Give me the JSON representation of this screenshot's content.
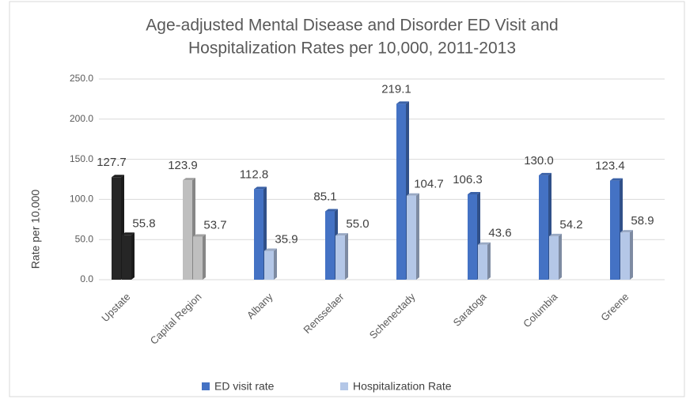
{
  "chart_data": {
    "type": "bar3d",
    "title": [
      "Age-adjusted Mental Disease and Disorder ED Visit and",
      "Hospitalization Rates per 10,000, 2011-2013"
    ],
    "y_label": "Rate per 10,000",
    "categories": [
      "Upstate",
      "Capital Region",
      "Albany",
      "Rensselaer",
      "Schenectady",
      "Saratoga",
      "Columbia",
      "Greene"
    ],
    "series": [
      {
        "name": "ED visit rate",
        "color": "#4472c4",
        "colors": [
          "#262626",
          "#bfbfbf",
          "#4472c4",
          "#4472c4",
          "#4472c4",
          "#4472c4",
          "#4472c4",
          "#4472c4"
        ],
        "values": [
          127.7,
          123.9,
          112.8,
          85.1,
          219.1,
          106.3,
          130.0,
          123.4
        ],
        "value_labels": [
          "127.7",
          "123.9",
          "112.8",
          "85.1",
          "219.1",
          "106.3",
          "130.0",
          "123.4"
        ]
      },
      {
        "name": "Hospitalization Rate",
        "color": "#b4c7e7",
        "colors": [
          "#262626",
          "#bfbfbf",
          "#b4c7e7",
          "#b4c7e7",
          "#b4c7e7",
          "#b4c7e7",
          "#b4c7e7",
          "#b4c7e7"
        ],
        "values": [
          55.8,
          53.7,
          35.9,
          55.0,
          104.7,
          43.6,
          54.2,
          58.9
        ],
        "value_labels": [
          "55.8",
          "53.7",
          "35.9",
          "55.0",
          "104.7",
          "43.6",
          "54.2",
          "58.9"
        ]
      }
    ],
    "ylim": [
      0,
      250
    ],
    "yticks": [
      {
        "value": 0,
        "label": "0.0"
      },
      {
        "value": 50,
        "label": "50.0"
      },
      {
        "value": 100,
        "label": "100.0"
      },
      {
        "value": 150,
        "label": "150.0"
      },
      {
        "value": 200,
        "label": "200.0"
      },
      {
        "value": 250,
        "label": "250.0"
      }
    ],
    "grid": true,
    "legend": "bottom"
  }
}
